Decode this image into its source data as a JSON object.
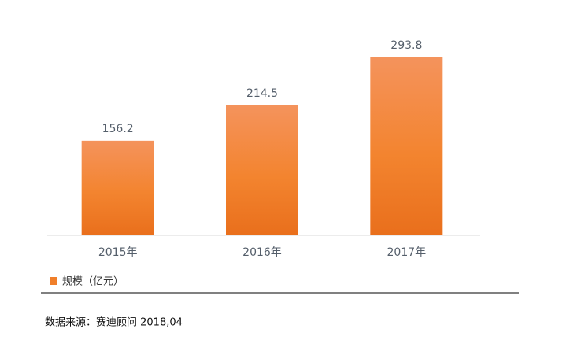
{
  "chart_data": {
    "type": "bar",
    "categories": [
      "2015年",
      "2016年",
      "2017年"
    ],
    "series": [
      {
        "name": "规模（亿元）",
        "color": "#f07f2a",
        "values": [
          156.2,
          214.5,
          293.8
        ]
      }
    ],
    "source": "数据来源：赛迪顾问 2018,04"
  }
}
